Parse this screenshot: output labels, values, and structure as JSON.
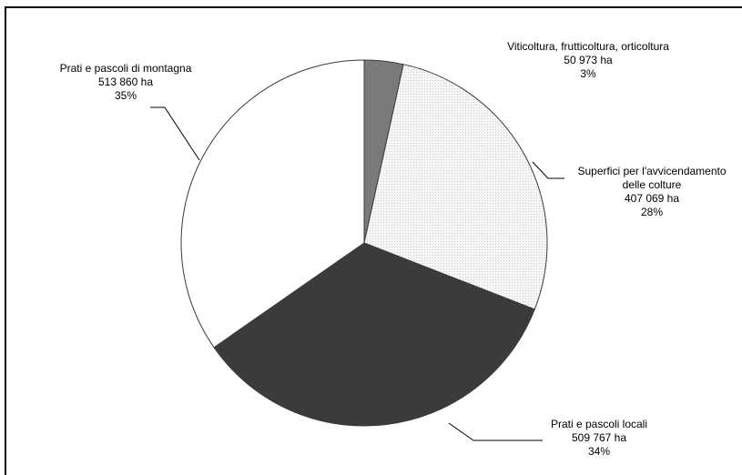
{
  "chart_data": {
    "type": "pie",
    "title": "",
    "slices": [
      {
        "name": "Viticoltura, frutticoltura, orticoltura",
        "area_text": "50 973 ha",
        "percent_text": "3%",
        "value": 50973,
        "color": "#7a7a7a",
        "pattern": "solid"
      },
      {
        "name": "Superfici per l'avvicendamento delle colture",
        "area_text": "407 069 ha",
        "percent_text": "28%",
        "value": 407069,
        "color": "#f3f3f3",
        "pattern": "dotted"
      },
      {
        "name": "Prati e pascoli locali",
        "area_text": "509 767 ha",
        "percent_text": "34%",
        "value": 509767,
        "color": "#3b3b3b",
        "pattern": "solid"
      },
      {
        "name": "Prati e pascoli di montagna",
        "area_text": "513 860 ha",
        "percent_text": "35%",
        "value": 513860,
        "color": "#ffffff",
        "pattern": "solid"
      }
    ],
    "labels": [
      {
        "lines": [
          "Viticoltura, frutticoltura, orticoltura",
          "50 973 ha",
          "3%"
        ]
      },
      {
        "lines": [
          "Superfici per l'avvicendamento",
          "delle colture",
          "407 069 ha",
          "28%"
        ]
      },
      {
        "lines": [
          "Prati e pascoli locali",
          "509 767 ha",
          "34%"
        ]
      },
      {
        "lines": [
          "Prati e pascoli di montagna",
          "513 860 ha",
          "35%"
        ]
      }
    ],
    "start_angle_deg": 0,
    "direction": "clockwise",
    "legend": "none"
  }
}
